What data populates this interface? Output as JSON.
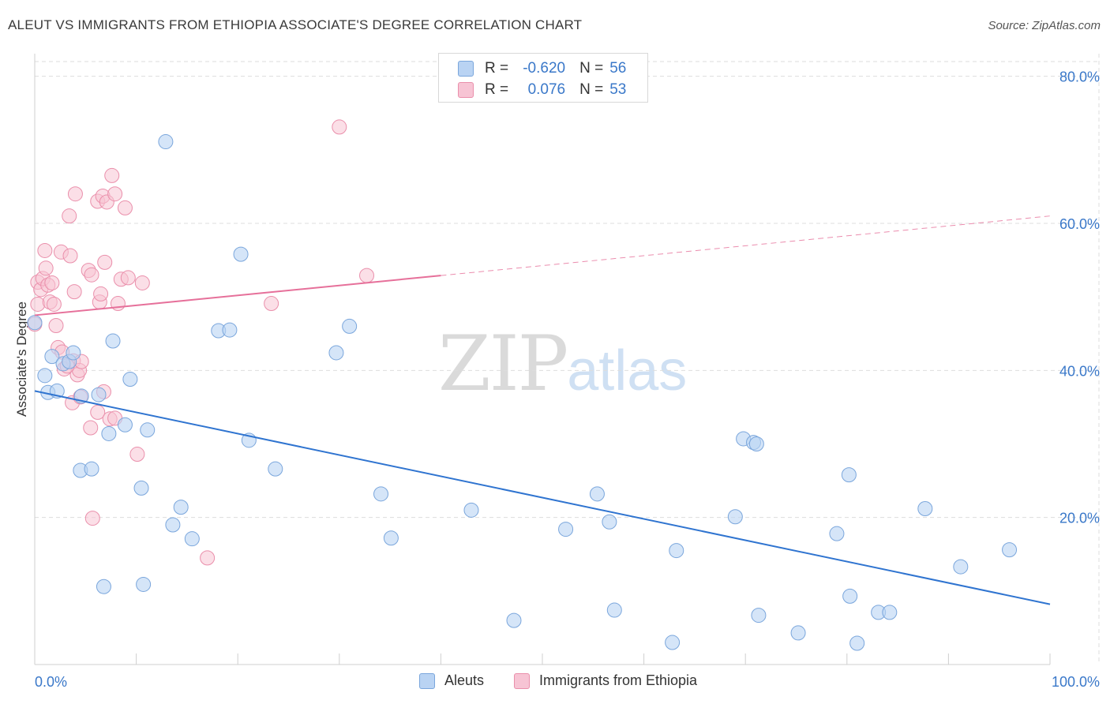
{
  "title": "ALEUT VS IMMIGRANTS FROM ETHIOPIA ASSOCIATE'S DEGREE CORRELATION CHART",
  "source": "Source: ZipAtlas.com",
  "legend_top": {
    "rows": [
      {
        "r_label": "R =",
        "r_value": "-0.620",
        "n_label": "N =",
        "n_value": "56"
      },
      {
        "r_label": "R =",
        "r_value": "0.076",
        "n_label": "N =",
        "n_value": "53"
      }
    ]
  },
  "legend_bottom": {
    "items": [
      "Aleuts",
      "Immigrants from Ethiopia"
    ]
  },
  "watermark": {
    "zip": "ZIP",
    "atlas": "atlas"
  },
  "colors": {
    "blue_fill": "#b9d3f3",
    "blue_stroke": "#7aa6dc",
    "blue_line": "#2f74d0",
    "pink_fill": "#f7c4d4",
    "pink_stroke": "#ea8fab",
    "pink_line": "#e6709a",
    "tick_label": "#3a78c9",
    "grid": "#dddddd"
  },
  "chart_data": {
    "type": "scatter",
    "title": "ALEUT VS IMMIGRANTS FROM ETHIOPIA ASSOCIATE'S DEGREE CORRELATION CHART",
    "xlabel": "",
    "ylabel": "Associate's Degree",
    "xlim": [
      0,
      100
    ],
    "ylim": [
      0,
      82
    ],
    "x_tick_labels": [
      "0.0%",
      "100.0%"
    ],
    "y_ticks": [
      20,
      40,
      60,
      80
    ],
    "y_tick_labels": [
      "20.0%",
      "40.0%",
      "60.0%",
      "80.0%"
    ],
    "grid": true,
    "series": [
      {
        "name": "Aleuts",
        "R": -0.62,
        "N": 56,
        "trend": {
          "x0": 0,
          "y0": 37.2,
          "x1": 100,
          "y1": 8.2,
          "dashed_from": null
        },
        "points": [
          [
            0.0,
            46.5
          ],
          [
            1.0,
            39.3
          ],
          [
            1.3,
            37.0
          ],
          [
            1.7,
            41.9
          ],
          [
            2.2,
            37.2
          ],
          [
            2.8,
            40.9
          ],
          [
            3.4,
            41.2
          ],
          [
            3.8,
            42.4
          ],
          [
            4.6,
            36.5
          ],
          [
            4.5,
            26.4
          ],
          [
            5.6,
            26.6
          ],
          [
            6.3,
            36.7
          ],
          [
            6.8,
            10.6
          ],
          [
            7.3,
            31.4
          ],
          [
            7.7,
            44.0
          ],
          [
            8.9,
            32.6
          ],
          [
            9.4,
            38.8
          ],
          [
            10.5,
            24.0
          ],
          [
            10.7,
            10.9
          ],
          [
            11.1,
            31.9
          ],
          [
            12.9,
            71.1
          ],
          [
            13.6,
            19.0
          ],
          [
            14.4,
            21.4
          ],
          [
            15.5,
            17.1
          ],
          [
            18.1,
            45.4
          ],
          [
            19.2,
            45.5
          ],
          [
            20.3,
            55.8
          ],
          [
            21.1,
            30.5
          ],
          [
            23.7,
            26.6
          ],
          [
            29.7,
            42.4
          ],
          [
            31.0,
            46.0
          ],
          [
            34.1,
            23.2
          ],
          [
            35.1,
            17.2
          ],
          [
            43.0,
            21.0
          ],
          [
            47.2,
            6.0
          ],
          [
            52.3,
            18.4
          ],
          [
            55.4,
            23.2
          ],
          [
            57.1,
            7.4
          ],
          [
            56.6,
            19.4
          ],
          [
            62.8,
            3.0
          ],
          [
            63.2,
            15.5
          ],
          [
            69.0,
            20.1
          ],
          [
            69.8,
            30.7
          ],
          [
            70.8,
            30.2
          ],
          [
            71.1,
            30.0
          ],
          [
            71.3,
            6.7
          ],
          [
            75.2,
            4.3
          ],
          [
            79.0,
            17.8
          ],
          [
            80.2,
            25.8
          ],
          [
            80.3,
            9.3
          ],
          [
            81.0,
            2.9
          ],
          [
            83.1,
            7.1
          ],
          [
            84.2,
            7.1
          ],
          [
            87.7,
            21.2
          ],
          [
            91.2,
            13.3
          ],
          [
            96.0,
            15.6
          ]
        ]
      },
      {
        "name": "Immigrants from Ethiopia",
        "R": 0.076,
        "N": 53,
        "trend": {
          "x0": 0,
          "y0": 47.5,
          "x1": 100,
          "y1": 61.0,
          "dashed_from": 40
        },
        "points": [
          [
            0.0,
            46.3
          ],
          [
            0.3,
            49.0
          ],
          [
            0.3,
            52.0
          ],
          [
            0.6,
            51.0
          ],
          [
            0.8,
            52.5
          ],
          [
            1.0,
            56.3
          ],
          [
            1.1,
            53.9
          ],
          [
            1.3,
            51.6
          ],
          [
            1.5,
            49.3
          ],
          [
            1.7,
            51.9
          ],
          [
            1.9,
            49.0
          ],
          [
            2.1,
            46.1
          ],
          [
            2.3,
            43.1
          ],
          [
            2.6,
            56.1
          ],
          [
            2.7,
            42.5
          ],
          [
            2.9,
            40.2
          ],
          [
            3.4,
            61.0
          ],
          [
            3.5,
            55.6
          ],
          [
            3.7,
            35.6
          ],
          [
            3.8,
            41.3
          ],
          [
            3.9,
            50.7
          ],
          [
            4.0,
            64.0
          ],
          [
            4.2,
            39.4
          ],
          [
            4.4,
            40.0
          ],
          [
            4.5,
            36.4
          ],
          [
            4.6,
            41.2
          ],
          [
            5.3,
            53.6
          ],
          [
            5.5,
            32.2
          ],
          [
            5.6,
            53.0
          ],
          [
            5.7,
            19.9
          ],
          [
            6.2,
            34.3
          ],
          [
            6.2,
            63.0
          ],
          [
            6.4,
            49.3
          ],
          [
            6.5,
            50.4
          ],
          [
            6.7,
            63.7
          ],
          [
            6.8,
            37.1
          ],
          [
            6.9,
            54.7
          ],
          [
            7.1,
            62.9
          ],
          [
            7.4,
            33.4
          ],
          [
            7.6,
            66.5
          ],
          [
            7.9,
            64.0
          ],
          [
            7.9,
            33.5
          ],
          [
            8.2,
            49.1
          ],
          [
            8.5,
            52.4
          ],
          [
            8.9,
            62.1
          ],
          [
            9.2,
            52.6
          ],
          [
            10.1,
            28.6
          ],
          [
            10.6,
            51.9
          ],
          [
            17.0,
            14.5
          ],
          [
            23.3,
            49.1
          ],
          [
            30.0,
            73.1
          ],
          [
            32.7,
            52.9
          ],
          [
            3.2,
            40.6
          ]
        ]
      }
    ]
  }
}
